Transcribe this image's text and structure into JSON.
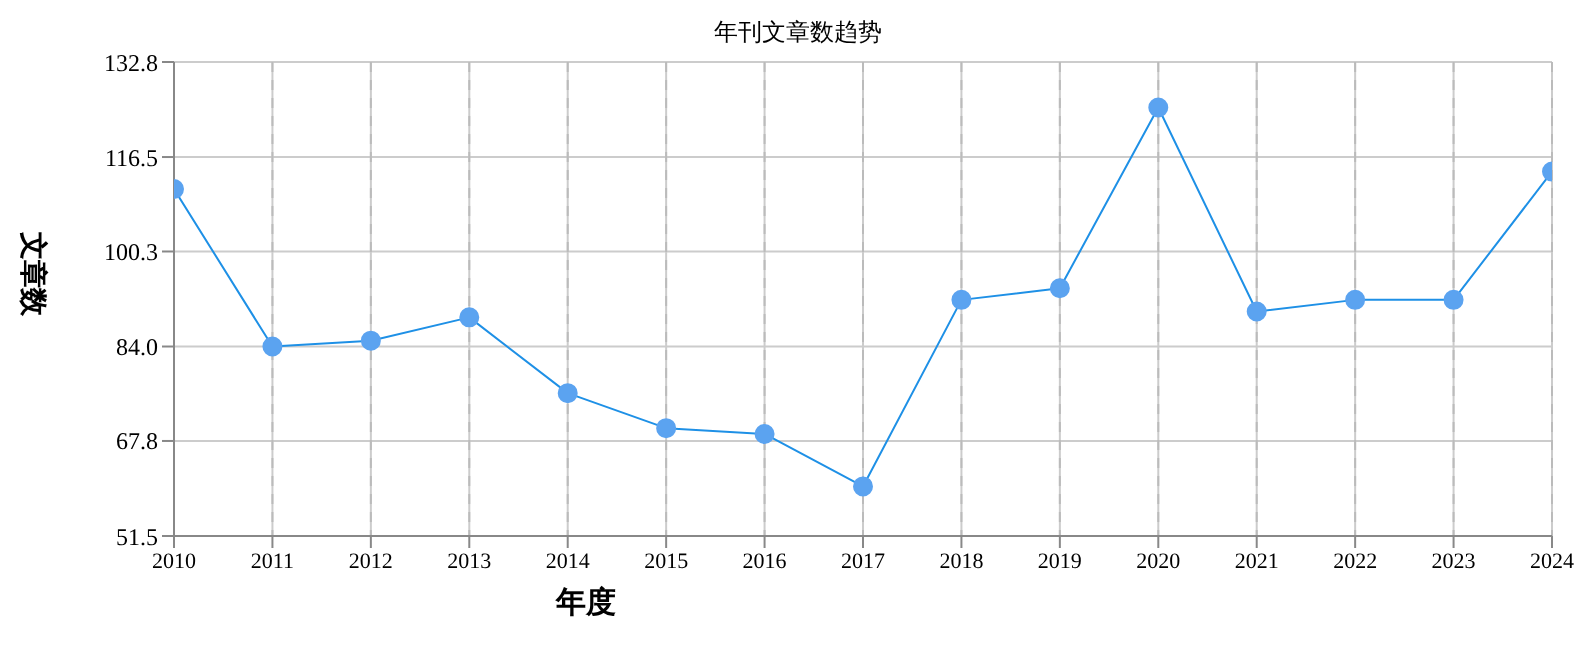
{
  "chart_data": {
    "type": "line",
    "title": "年刊文章数趋势",
    "xlabel": "年度",
    "ylabel": "文章数",
    "x": [
      2010,
      2011,
      2012,
      2013,
      2014,
      2015,
      2016,
      2017,
      2018,
      2019,
      2020,
      2021,
      2022,
      2023,
      2024
    ],
    "series": [
      {
        "color": "#1e90e6",
        "values": [
          111,
          84,
          85,
          89,
          76,
          70,
          69,
          60,
          92,
          94,
          125,
          90,
          92,
          92,
          114
        ]
      }
    ],
    "xlim": [
      2010,
      2024
    ],
    "xticks": [
      2010,
      2011,
      2012,
      2013,
      2014,
      2015,
      2016,
      2017,
      2018,
      2019,
      2020,
      2021,
      2022,
      2023,
      2024
    ],
    "ylim": [
      51.5,
      132.8
    ],
    "yticks": [
      51.5,
      67.8,
      {
        "value": 84,
        "label": "84.0"
      },
      100.3,
      116.5,
      132.8
    ],
    "grid": true,
    "marker": "circle",
    "line_style": "solid"
  }
}
